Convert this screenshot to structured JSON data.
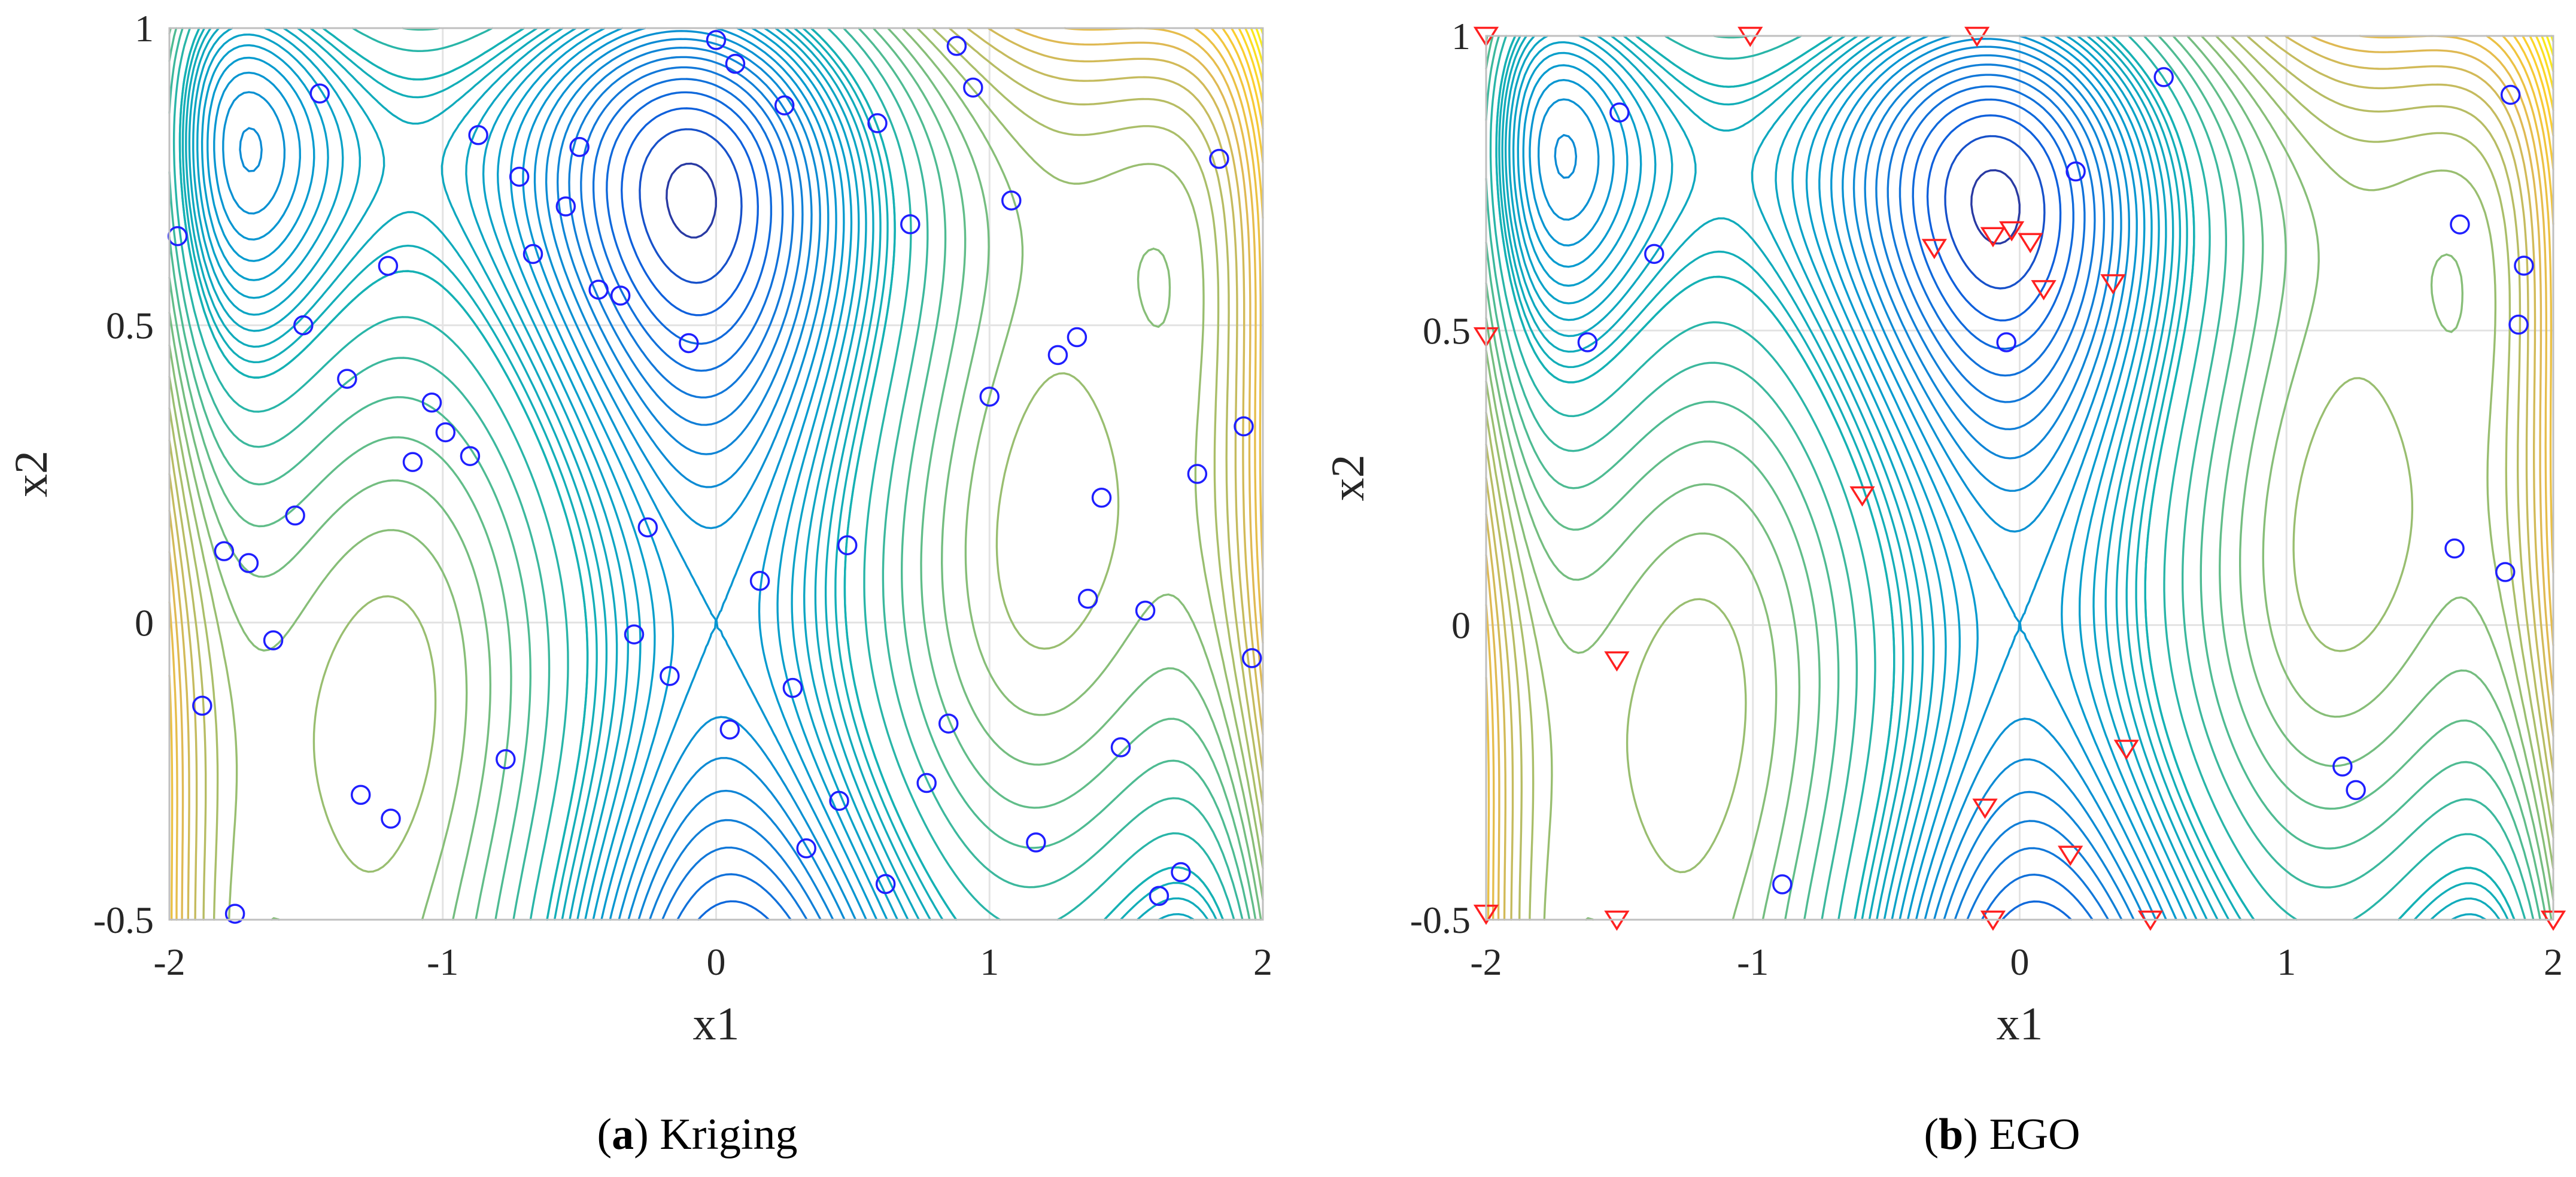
{
  "figure": {
    "panels": [
      "a",
      "b"
    ]
  },
  "chart_data": [
    {
      "type": "contour",
      "caption_letter": "a",
      "caption_text": "Kriging",
      "xlabel": "x1",
      "ylabel": "x2",
      "xlim": [
        -2,
        2
      ],
      "ylim": [
        -0.5,
        1
      ],
      "xticks": [
        "-2",
        "-1",
        "0",
        "1",
        "2"
      ],
      "yticks": [
        "-0.5",
        "0",
        "0.5",
        "1"
      ],
      "grid": true,
      "contour_function": "six-hump camel-like surface (colormap parula: blue low, yellow high)",
      "colors": {
        "marker": "#1f1fff",
        "contour_low": "#352a87",
        "contour_high": "#f9fb0e"
      },
      "markers": [
        {
          "shape": "circle",
          "color": "#1f1fff",
          "points": [
            [
              0.0,
              0.98
            ],
            [
              0.07,
              0.94
            ],
            [
              0.88,
              0.97
            ],
            [
              0.94,
              0.9
            ],
            [
              -1.45,
              0.89
            ],
            [
              0.25,
              0.87
            ],
            [
              -0.87,
              0.82
            ],
            [
              0.59,
              0.84
            ],
            [
              1.84,
              0.78
            ],
            [
              -0.5,
              0.8
            ],
            [
              -0.72,
              0.75
            ],
            [
              1.08,
              0.71
            ],
            [
              -0.55,
              0.7
            ],
            [
              0.71,
              0.67
            ],
            [
              -1.97,
              0.65
            ],
            [
              -0.67,
              0.62
            ],
            [
              -1.2,
              0.6
            ],
            [
              -0.43,
              0.56
            ],
            [
              -0.35,
              0.55
            ],
            [
              -1.51,
              0.5
            ],
            [
              -0.1,
              0.47
            ],
            [
              1.32,
              0.48
            ],
            [
              1.25,
              0.45
            ],
            [
              -1.35,
              0.41
            ],
            [
              1.0,
              0.38
            ],
            [
              -1.04,
              0.37
            ],
            [
              -0.99,
              0.32
            ],
            [
              1.93,
              0.33
            ],
            [
              -0.9,
              0.28
            ],
            [
              -1.11,
              0.27
            ],
            [
              1.76,
              0.25
            ],
            [
              1.41,
              0.21
            ],
            [
              -1.54,
              0.18
            ],
            [
              -0.25,
              0.16
            ],
            [
              0.48,
              0.13
            ],
            [
              -1.8,
              0.12
            ],
            [
              -1.71,
              0.1
            ],
            [
              0.16,
              0.07
            ],
            [
              1.36,
              0.04
            ],
            [
              1.57,
              0.02
            ],
            [
              -1.62,
              -0.03
            ],
            [
              -0.3,
              -0.02
            ],
            [
              1.96,
              -0.06
            ],
            [
              -0.17,
              -0.09
            ],
            [
              0.28,
              -0.11
            ],
            [
              -1.88,
              -0.14
            ],
            [
              0.85,
              -0.17
            ],
            [
              0.05,
              -0.18
            ],
            [
              1.48,
              -0.21
            ],
            [
              -0.77,
              -0.23
            ],
            [
              0.77,
              -0.27
            ],
            [
              -1.3,
              -0.29
            ],
            [
              -1.19,
              -0.33
            ],
            [
              0.45,
              -0.3
            ],
            [
              0.33,
              -0.38
            ],
            [
              1.17,
              -0.37
            ],
            [
              1.7,
              -0.42
            ],
            [
              0.62,
              -0.44
            ],
            [
              1.62,
              -0.46
            ],
            [
              -1.76,
              -0.49
            ]
          ]
        }
      ]
    },
    {
      "type": "contour",
      "caption_letter": "b",
      "caption_text": "EGO",
      "xlabel": "x1",
      "ylabel": "x2",
      "xlim": [
        -2,
        2
      ],
      "ylim": [
        -0.5,
        1
      ],
      "xticks": [
        "-2",
        "-1",
        "0",
        "1",
        "2"
      ],
      "yticks": [
        "-0.5",
        "0",
        "0.5",
        "1"
      ],
      "grid": true,
      "contour_function": "six-hump camel-like surface (colormap parula: blue low, yellow high)",
      "colors": {
        "circle": "#1f1fff",
        "triangle": "#ff2020"
      },
      "markers": [
        {
          "shape": "circle",
          "color": "#1f1fff",
          "points": [
            [
              0.54,
              0.93
            ],
            [
              1.84,
              0.9
            ],
            [
              -1.5,
              0.87
            ],
            [
              0.21,
              0.77
            ],
            [
              1.65,
              0.68
            ],
            [
              -1.37,
              0.63
            ],
            [
              1.89,
              0.61
            ],
            [
              1.87,
              0.51
            ],
            [
              -1.62,
              0.48
            ],
            [
              -0.05,
              0.48
            ],
            [
              1.63,
              0.13
            ],
            [
              1.82,
              0.09
            ],
            [
              1.21,
              -0.24
            ],
            [
              1.26,
              -0.28
            ],
            [
              -0.89,
              -0.44
            ]
          ]
        },
        {
          "shape": "triangle-down",
          "color": "#ff2020",
          "points": [
            [
              -2.0,
              1.0
            ],
            [
              -1.01,
              1.0
            ],
            [
              -0.16,
              1.0
            ],
            [
              -0.03,
              0.67
            ],
            [
              -0.1,
              0.66
            ],
            [
              0.04,
              0.65
            ],
            [
              -0.32,
              0.64
            ],
            [
              0.09,
              0.57
            ],
            [
              0.35,
              0.58
            ],
            [
              -2.0,
              0.49
            ],
            [
              -0.59,
              0.22
            ],
            [
              -1.51,
              -0.06
            ],
            [
              0.4,
              -0.21
            ],
            [
              -0.13,
              -0.31
            ],
            [
              0.19,
              -0.39
            ],
            [
              -2.0,
              -0.49
            ],
            [
              -1.51,
              -0.5
            ],
            [
              -0.1,
              -0.5
            ],
            [
              0.49,
              -0.5
            ],
            [
              2.0,
              -0.5
            ]
          ]
        }
      ]
    }
  ]
}
